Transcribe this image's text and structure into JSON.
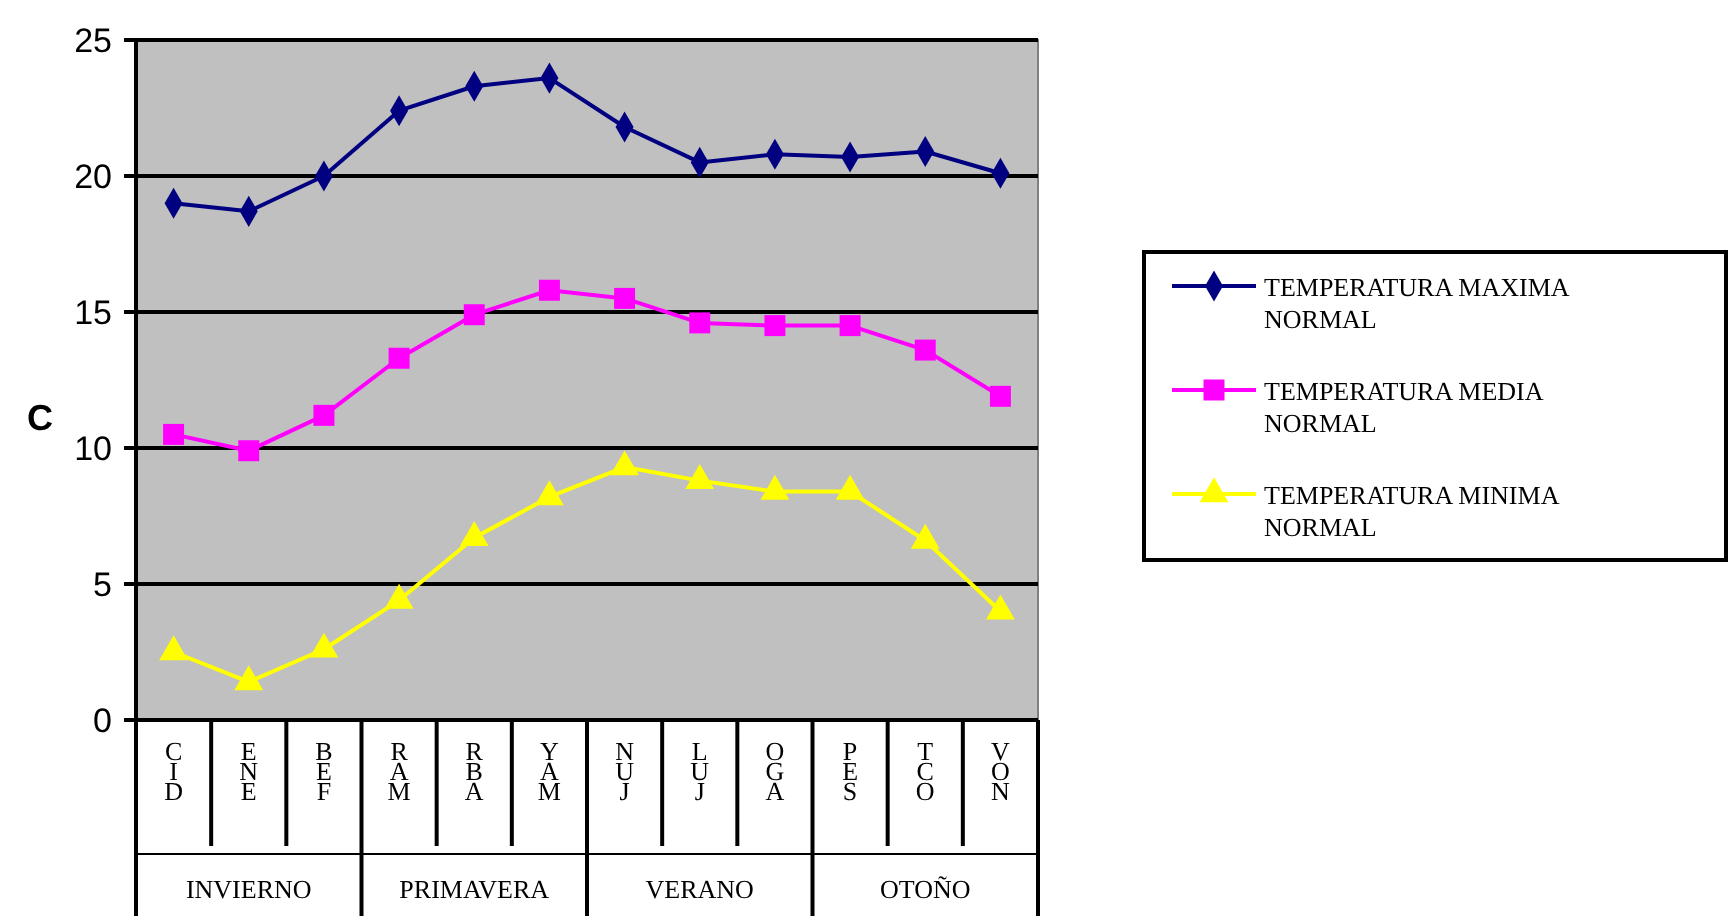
{
  "chart_data": {
    "type": "line",
    "ylabel": "C",
    "categories": [
      "CID",
      "ENE",
      "BEF",
      "RAM",
      "RBA",
      "YAM",
      "NUJ",
      "LUJ",
      "OGA",
      "PES",
      "TCO",
      "VON"
    ],
    "annotations": [
      "INVIERNO",
      "PRIMAVERA",
      "VERANO",
      "OTOÑO"
    ],
    "series": [
      {
        "name": "TEMPERATURA MAXIMA NORMAL",
        "color": "#000080",
        "marker": "diamond",
        "values": [
          19.0,
          18.7,
          20.0,
          22.4,
          23.3,
          23.6,
          21.8,
          20.5,
          20.8,
          20.7,
          20.9,
          20.1
        ]
      },
      {
        "name": "TEMPERATURA MEDIA NORMAL",
        "color": "#ff00ff",
        "marker": "square",
        "values": [
          10.5,
          9.9,
          11.2,
          13.3,
          14.9,
          15.8,
          15.5,
          14.6,
          14.5,
          14.5,
          13.6,
          11.9
        ]
      },
      {
        "name": "TEMPERATURA MINIMA NORMAL",
        "color": "#ffff00",
        "marker": "triangle",
        "values": [
          2.5,
          1.4,
          2.6,
          4.4,
          6.7,
          8.2,
          9.3,
          8.8,
          8.4,
          8.4,
          6.6,
          4.0
        ]
      }
    ],
    "ylim": [
      0,
      25
    ],
    "yticks": [
      0,
      5,
      10,
      15,
      20,
      25
    ],
    "grid": "y",
    "legend": "right"
  }
}
